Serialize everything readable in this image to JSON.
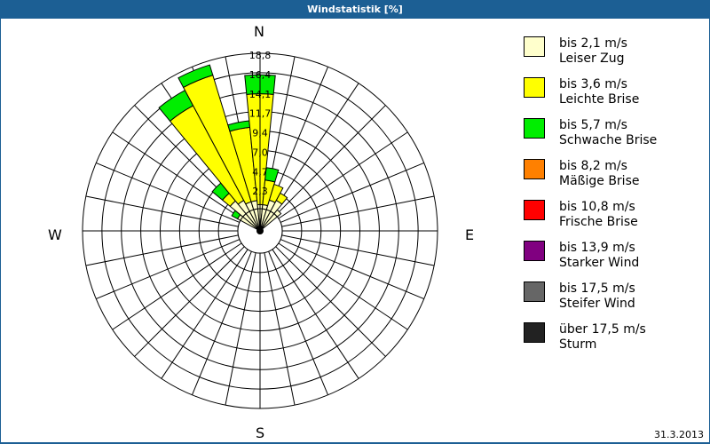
{
  "window": {
    "title": "Windstatistik [%]"
  },
  "footer": {
    "date": "31.3.2013"
  },
  "compass": {
    "N": "N",
    "E": "E",
    "S": "S",
    "W": "W"
  },
  "chart_data": {
    "type": "polar-stacked-bar (wind rose)",
    "title": "Windstatistik [%]",
    "unit": "%",
    "radial_ticks": [
      "2,3",
      "4,7",
      "7,0",
      "9,4",
      "11,7",
      "14,1",
      "16,4",
      "18,8"
    ],
    "radial_max": 18.8,
    "sector_width_deg": 11.25,
    "grid": true,
    "legend_position": "right",
    "legend": [
      {
        "range": "bis 2,1 m/s",
        "name": "Leiser Zug",
        "color": "#ffffcc"
      },
      {
        "range": "bis 3,6 m/s",
        "name": "Leichte Brise",
        "color": "#ffff00"
      },
      {
        "range": "bis 5,7 m/s",
        "name": "Schwache Brise",
        "color": "#00ee00"
      },
      {
        "range": "bis 8,2 m/s",
        "name": "Mäßige Brise",
        "color": "#ff8000"
      },
      {
        "range": "bis 10,8 m/s",
        "name": "Frische Brise",
        "color": "#ff0000"
      },
      {
        "range": "bis 13,9 m/s",
        "name": "Starker Wind",
        "color": "#800080"
      },
      {
        "range": "bis 17,5 m/s",
        "name": "Steifer Wind",
        "color": "#666666"
      },
      {
        "range": "über 17,5 m/s",
        "name": "Sturm",
        "color": "#222222"
      }
    ],
    "sectors": [
      {
        "angle": -56.25,
        "cumulative": [
          0.4,
          0.4,
          1.2
        ]
      },
      {
        "angle": -45,
        "cumulative": [
          2.0,
          3.2,
          4.8
        ]
      },
      {
        "angle": -33.75,
        "cumulative": [
          1.5,
          14.5,
          16.6
        ]
      },
      {
        "angle": -22.5,
        "cumulative": [
          1.0,
          17.0,
          18.3
        ]
      },
      {
        "angle": -11.25,
        "cumulative": [
          1.0,
          9.9,
          10.7
        ]
      },
      {
        "angle": 0,
        "cumulative": [
          0.5,
          13.9,
          16.2
        ]
      },
      {
        "angle": 11.25,
        "cumulative": [
          0.5,
          3.5,
          5.0
        ]
      },
      {
        "angle": 22.5,
        "cumulative": [
          1.2,
          3.2,
          3.2
        ]
      },
      {
        "angle": 33.75,
        "cumulative": [
          1.5,
          2.5,
          2.5
        ]
      },
      {
        "angle": 45,
        "cumulative": [
          0.6,
          0.6,
          0.6
        ]
      }
    ]
  }
}
